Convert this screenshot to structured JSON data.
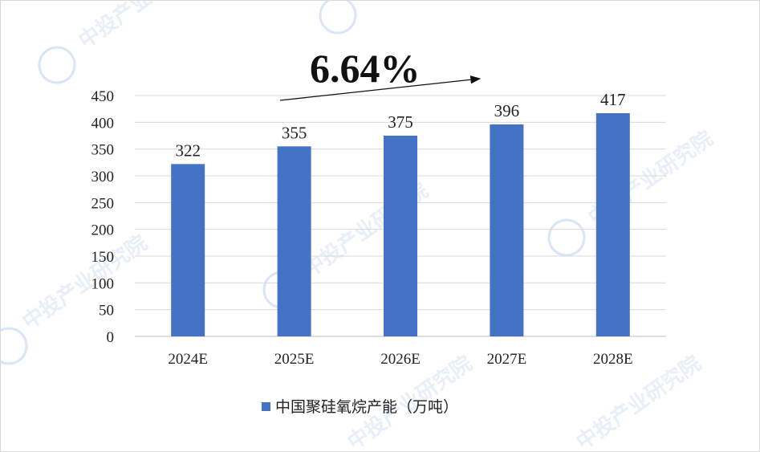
{
  "chart_data": {
    "type": "bar",
    "categories": [
      "2024E",
      "2025E",
      "2026E",
      "2027E",
      "2028E"
    ],
    "series": [
      {
        "name": "中国聚硅氧烷产能（万吨）",
        "values": [
          322,
          355,
          375,
          396,
          417
        ],
        "color": "#4472C4"
      }
    ],
    "ylim": [
      0,
      450
    ],
    "yticks": [
      0,
      50,
      100,
      150,
      200,
      250,
      300,
      350,
      400,
      450
    ],
    "grid": true,
    "legend_position": "bottom",
    "annotation": {
      "text": "6.64%",
      "arrow": true
    }
  },
  "watermark": {
    "text": "中投产业研究院",
    "color": "#d7e3f7"
  }
}
